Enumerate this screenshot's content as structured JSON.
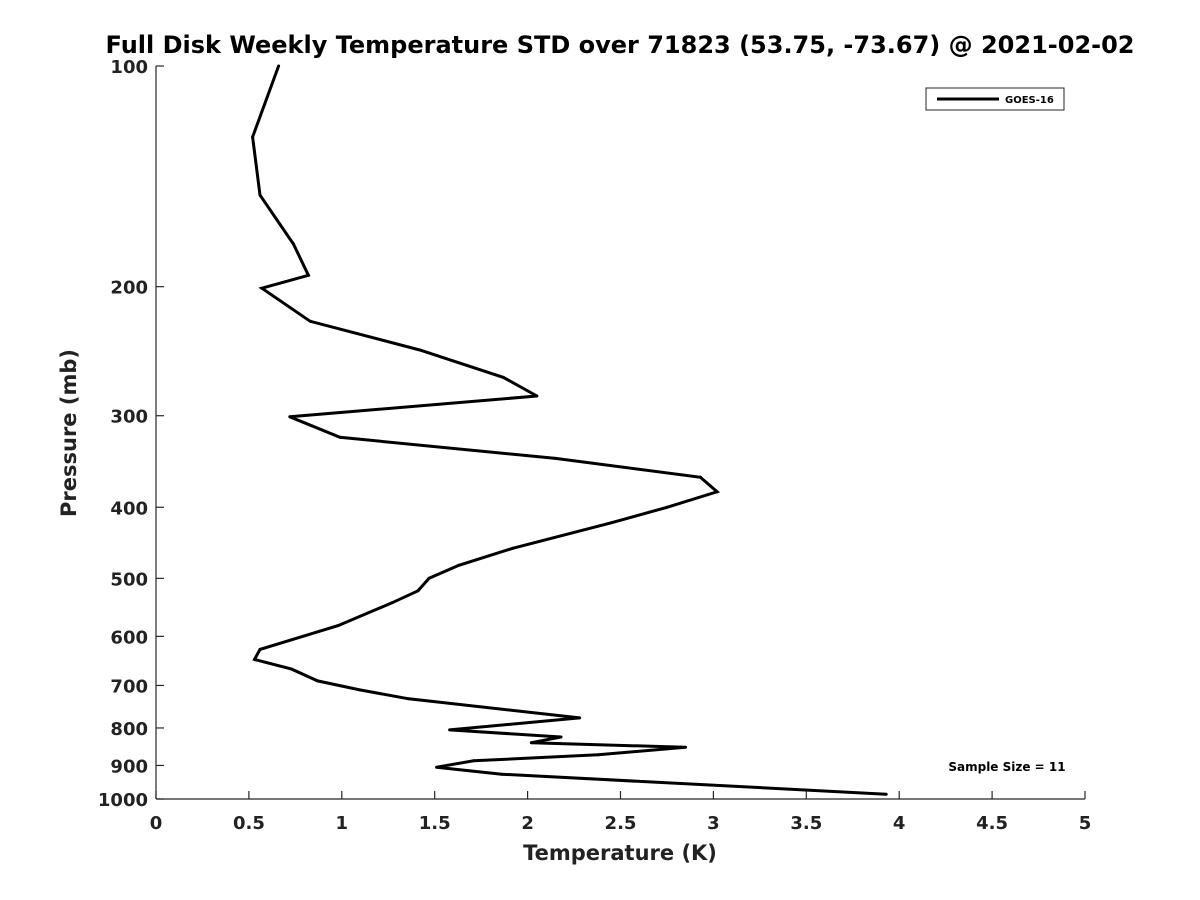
{
  "chart_data": {
    "type": "line",
    "title": "Full Disk Weekly Temperature STD over 71823 (53.75, -73.67) @ 2021-02-02",
    "xlabel": "Temperature (K)",
    "ylabel": "Pressure (mb)",
    "xlim": [
      0,
      5
    ],
    "ylim": [
      100,
      1000
    ],
    "y_scale": "log",
    "y_reversed": true,
    "x_ticks": [
      "0",
      "0.5",
      "1",
      "1.5",
      "2",
      "2.5",
      "3",
      "3.5",
      "4",
      "4.5",
      "5"
    ],
    "y_ticks": [
      "100",
      "200",
      "300",
      "400",
      "500",
      "600",
      "700",
      "800",
      "900",
      "1000"
    ],
    "grid": false,
    "legend_position": "top-right",
    "series": [
      {
        "name": "GOES-16",
        "color": "#000000",
        "points": [
          {
            "x": 0.66,
            "y": 100
          },
          {
            "x": 0.52,
            "y": 125
          },
          {
            "x": 0.56,
            "y": 150
          },
          {
            "x": 0.74,
            "y": 175
          },
          {
            "x": 0.82,
            "y": 193
          },
          {
            "x": 0.57,
            "y": 201
          },
          {
            "x": 0.83,
            "y": 223
          },
          {
            "x": 1.42,
            "y": 244
          },
          {
            "x": 1.87,
            "y": 266
          },
          {
            "x": 2.05,
            "y": 282
          },
          {
            "x": 0.72,
            "y": 301
          },
          {
            "x": 0.99,
            "y": 321
          },
          {
            "x": 2.15,
            "y": 343
          },
          {
            "x": 2.93,
            "y": 364
          },
          {
            "x": 3.02,
            "y": 381
          },
          {
            "x": 2.75,
            "y": 400
          },
          {
            "x": 2.45,
            "y": 420
          },
          {
            "x": 1.92,
            "y": 455
          },
          {
            "x": 1.63,
            "y": 480
          },
          {
            "x": 1.47,
            "y": 500
          },
          {
            "x": 1.41,
            "y": 520
          },
          {
            "x": 1.27,
            "y": 540
          },
          {
            "x": 0.98,
            "y": 580
          },
          {
            "x": 0.56,
            "y": 625
          },
          {
            "x": 0.53,
            "y": 645
          },
          {
            "x": 0.73,
            "y": 665
          },
          {
            "x": 0.87,
            "y": 690
          },
          {
            "x": 1.1,
            "y": 710
          },
          {
            "x": 1.36,
            "y": 730
          },
          {
            "x": 2.28,
            "y": 775
          },
          {
            "x": 1.58,
            "y": 805
          },
          {
            "x": 2.18,
            "y": 823
          },
          {
            "x": 2.02,
            "y": 838
          },
          {
            "x": 2.85,
            "y": 850
          },
          {
            "x": 2.38,
            "y": 870
          },
          {
            "x": 1.71,
            "y": 887
          },
          {
            "x": 1.51,
            "y": 905
          },
          {
            "x": 1.86,
            "y": 925
          },
          {
            "x": 3.93,
            "y": 985
          }
        ]
      }
    ],
    "annotation": "Sample Size = 11"
  }
}
